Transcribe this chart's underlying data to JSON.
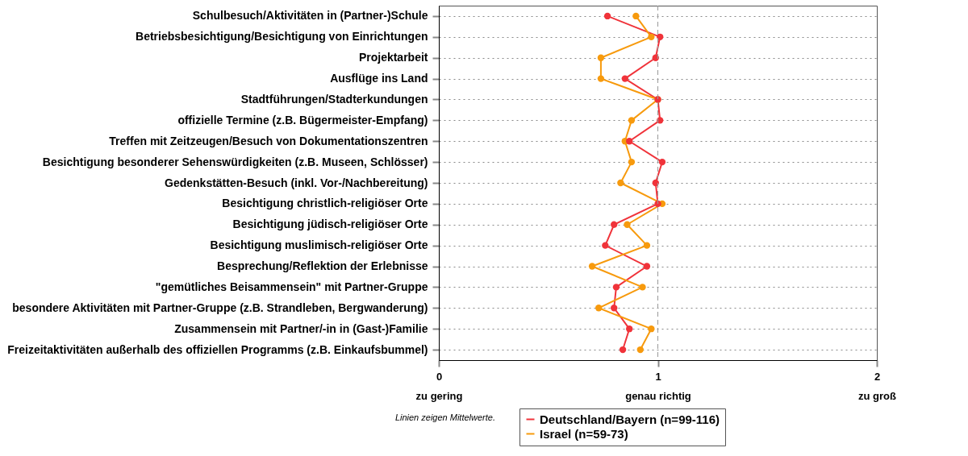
{
  "chart_data": {
    "type": "line",
    "orientation": "horizontal",
    "categories": [
      "Schulbesuch/Aktivitäten in (Partner-)Schule",
      "Betriebsbesichtigung/Besichtigung von Einrichtungen",
      "Projektarbeit",
      "Ausflüge ins Land",
      "Stadtführungen/Stadterkundungen",
      "offizielle Termine (z.B. Bügermeister-Empfang)",
      "Treffen mit Zeitzeugen/Besuch von Dokumentationszentren",
      "Besichtigung besonderer Sehenswürdigkeiten (z.B. Museen, Schlösser)",
      "Gedenkstätten-Besuch (inkl. Vor-/Nachbereitung)",
      "Besichtigung christlich-religiöser Orte",
      "Besichtigung jüdisch-religiöser Orte",
      "Besichtigung muslimisch-religiöser Orte",
      "Besprechung/Reflektion der Erlebnisse",
      "\"gemütliches Beisammensein\" mit Partner-Gruppe",
      "besondere Aktivitäten mit Partner-Gruppe (z.B. Strandleben, Bergwanderung)",
      "Zusammensein mit Partner/-in in (Gast-)Familie",
      "Freizeitaktivitäten außerhalb des offiziellen Programms (z.B. Einkaufsbummel)"
    ],
    "series": [
      {
        "name": "Deutschland/Bayern (n=99-116)",
        "color": "#f0333a",
        "values": [
          0.77,
          1.01,
          0.99,
          0.85,
          1.0,
          1.01,
          0.87,
          1.02,
          0.99,
          1.0,
          0.8,
          0.76,
          0.95,
          0.81,
          0.8,
          0.87,
          0.84
        ]
      },
      {
        "name": "Israel (n=59-73)",
        "color": "#f79a0d",
        "values": [
          0.9,
          0.97,
          0.74,
          0.74,
          1.0,
          0.88,
          0.85,
          0.88,
          0.83,
          1.02,
          0.86,
          0.95,
          0.7,
          0.93,
          0.73,
          0.97,
          0.92
        ]
      }
    ],
    "xlim": [
      0,
      2
    ],
    "xticks": [
      {
        "value": 0,
        "label": "0\nzu gering"
      },
      {
        "value": 1,
        "label": "1\ngenau richtig"
      },
      {
        "value": 2,
        "label": "2\nzu groß"
      }
    ],
    "ref_lines": [
      {
        "axis": "x",
        "value": 1,
        "label": null,
        "color": "#999999",
        "line_style": "dashed"
      }
    ],
    "grid": "y",
    "marker": "circle",
    "line_style": "solid",
    "legend": "bottom",
    "annotations": [
      "Linien zeigen Mittelwerte."
    ]
  }
}
